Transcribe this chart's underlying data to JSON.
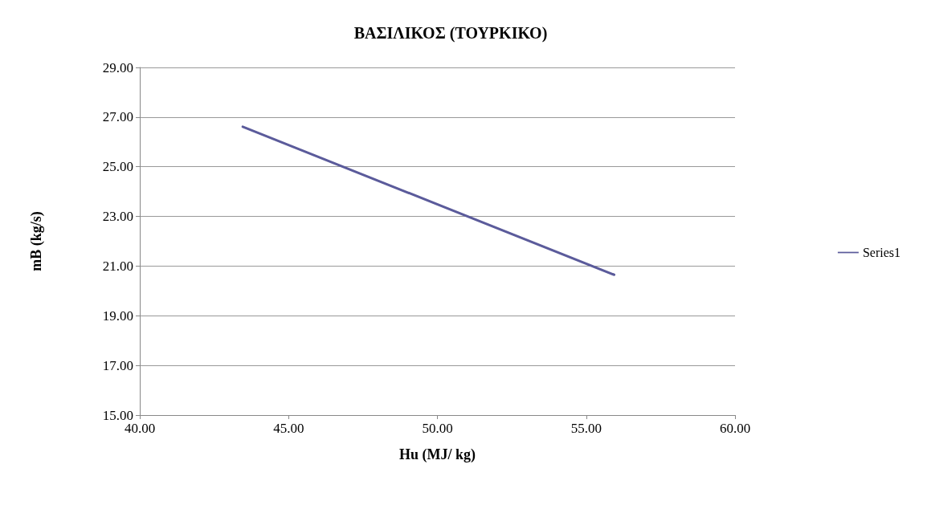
{
  "chart_data": {
    "type": "line",
    "title": "ΒΑΣΙΛΙΚΟΣ (ΤΟΥΡΚΙΚΟ)",
    "xlabel": "Hu (MJ/ kg)",
    "ylabel": "mB (kg/s)",
    "series": [
      {
        "name": "Series1",
        "color": "#5b5b9b",
        "x": [
          43.46,
          55.94
        ],
        "values": [
          26.61,
          20.65
        ]
      }
    ],
    "xlim": [
      40,
      60
    ],
    "xticks": [
      {
        "value": 40,
        "label": "40.00"
      },
      {
        "value": 45,
        "label": "45.00"
      },
      {
        "value": 50,
        "label": "50.00"
      },
      {
        "value": 55,
        "label": "55.00"
      },
      {
        "value": 60,
        "label": "60.00"
      }
    ],
    "ylim": [
      15,
      29
    ],
    "yticks": [
      {
        "value": 15,
        "label": "15.00"
      },
      {
        "value": 17,
        "label": "17.00"
      },
      {
        "value": 19,
        "label": "19.00"
      },
      {
        "value": 21,
        "label": "21.00"
      },
      {
        "value": 23,
        "label": "23.00"
      },
      {
        "value": 25,
        "label": "25.00"
      },
      {
        "value": 27,
        "label": "27.00"
      },
      {
        "value": 29,
        "label": "29.00"
      }
    ],
    "grid": "y",
    "legend": "right",
    "marker": "none",
    "line_style": "solid"
  }
}
